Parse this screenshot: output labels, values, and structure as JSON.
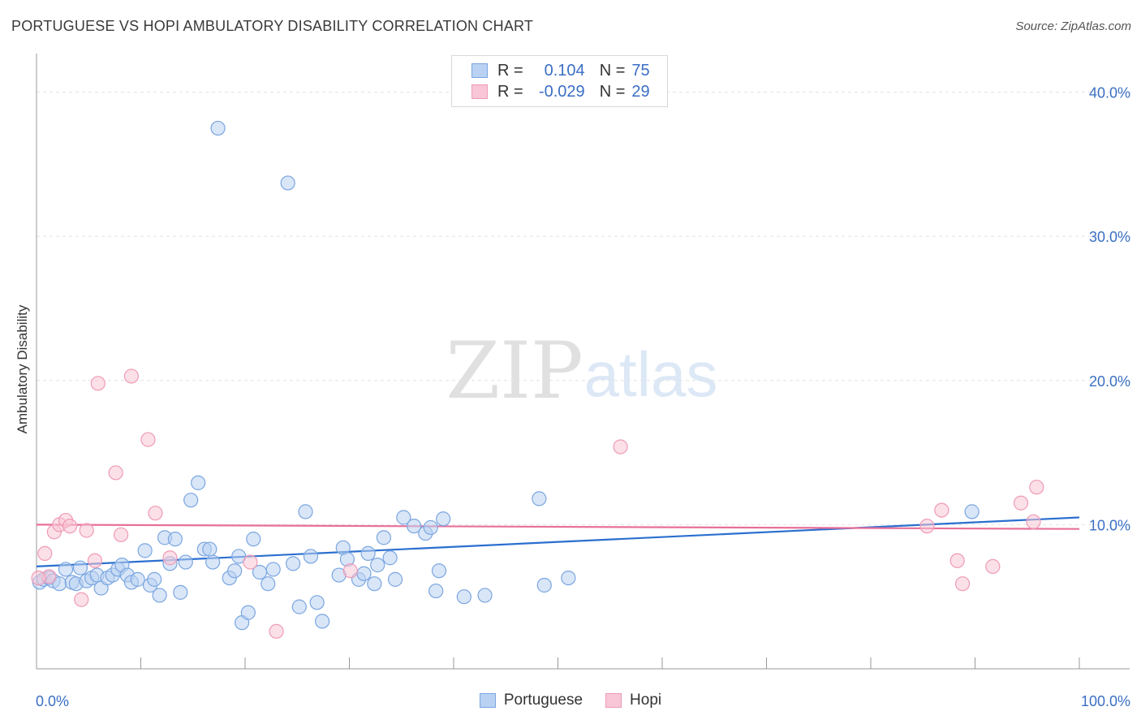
{
  "header": {
    "title": "PORTUGUESE VS HOPI AMBULATORY DISABILITY CORRELATION CHART",
    "source": "Source: ZipAtlas.com"
  },
  "watermark": {
    "zip": "ZIP",
    "atlas": "atlas"
  },
  "legend": {
    "r_label": "R =",
    "n_label": "N =",
    "series": [
      {
        "name": "Portuguese",
        "r": "0.104",
        "n": "75"
      },
      {
        "name": "Hopi",
        "r": "-0.029",
        "n": "29"
      }
    ]
  },
  "colors": {
    "portuguese_fill": "#b9d2f3",
    "portuguese_stroke": "#7aa6e0",
    "portuguese_line": "#2a6fcf",
    "hopi_fill": "#f8c6d6",
    "hopi_stroke": "#ef9ab6",
    "hopi_line": "#e8709a",
    "tick_label": "#3a6fc4"
  },
  "chart_data": {
    "type": "scatter",
    "title": "PORTUGUESE VS HOPI AMBULATORY DISABILITY CORRELATION CHART",
    "xlabel": "",
    "ylabel": "Ambulatory Disability",
    "xlim": [
      0,
      100
    ],
    "ylim": [
      0,
      42
    ],
    "x_tick_labels": [
      "0.0%",
      "100.0%"
    ],
    "y_ticks": [
      10,
      20,
      30,
      40
    ],
    "y_tick_labels": [
      "10.0%",
      "20.0%",
      "30.0%",
      "40.0%"
    ],
    "legend_position": "top-center",
    "series": [
      {
        "name": "Portuguese",
        "points": [
          [
            0.3,
            6.0
          ],
          [
            0.7,
            6.2
          ],
          [
            1.2,
            6.3
          ],
          [
            1.6,
            6.1
          ],
          [
            2.2,
            5.9
          ],
          [
            2.8,
            6.9
          ],
          [
            3.4,
            6.0
          ],
          [
            3.8,
            5.9
          ],
          [
            4.2,
            7.0
          ],
          [
            4.8,
            6.1
          ],
          [
            5.3,
            6.3
          ],
          [
            5.8,
            6.5
          ],
          [
            6.2,
            5.6
          ],
          [
            6.8,
            6.3
          ],
          [
            7.3,
            6.5
          ],
          [
            7.8,
            6.9
          ],
          [
            8.2,
            7.2
          ],
          [
            8.7,
            6.5
          ],
          [
            9.1,
            6.0
          ],
          [
            9.7,
            6.2
          ],
          [
            10.4,
            8.2
          ],
          [
            10.9,
            5.8
          ],
          [
            11.3,
            6.2
          ],
          [
            11.8,
            5.1
          ],
          [
            12.3,
            9.1
          ],
          [
            12.8,
            7.3
          ],
          [
            13.3,
            9.0
          ],
          [
            13.8,
            5.3
          ],
          [
            14.3,
            7.4
          ],
          [
            14.8,
            11.7
          ],
          [
            15.5,
            12.9
          ],
          [
            16.1,
            8.3
          ],
          [
            16.6,
            8.3
          ],
          [
            16.9,
            7.4
          ],
          [
            17.4,
            37.5
          ],
          [
            18.5,
            6.3
          ],
          [
            19.0,
            6.8
          ],
          [
            19.4,
            7.8
          ],
          [
            19.7,
            3.2
          ],
          [
            20.3,
            3.9
          ],
          [
            20.8,
            9.0
          ],
          [
            21.4,
            6.7
          ],
          [
            22.2,
            5.9
          ],
          [
            22.7,
            6.9
          ],
          [
            24.1,
            33.7
          ],
          [
            24.6,
            7.3
          ],
          [
            25.2,
            4.3
          ],
          [
            25.8,
            10.9
          ],
          [
            26.3,
            7.8
          ],
          [
            26.9,
            4.6
          ],
          [
            27.4,
            3.3
          ],
          [
            29.0,
            6.5
          ],
          [
            29.4,
            8.4
          ],
          [
            29.8,
            7.6
          ],
          [
            30.9,
            6.2
          ],
          [
            31.4,
            6.6
          ],
          [
            31.8,
            8.0
          ],
          [
            32.4,
            5.9
          ],
          [
            32.7,
            7.2
          ],
          [
            33.3,
            9.1
          ],
          [
            33.9,
            7.7
          ],
          [
            34.4,
            6.2
          ],
          [
            35.2,
            10.5
          ],
          [
            36.2,
            9.9
          ],
          [
            37.3,
            9.4
          ],
          [
            37.8,
            9.8
          ],
          [
            38.3,
            5.4
          ],
          [
            38.6,
            6.8
          ],
          [
            39.0,
            10.4
          ],
          [
            41.0,
            5.0
          ],
          [
            43.0,
            5.1
          ],
          [
            48.2,
            11.8
          ],
          [
            48.7,
            5.8
          ],
          [
            51.0,
            6.3
          ],
          [
            89.7,
            10.9
          ]
        ],
        "trend": {
          "x": [
            0,
            100
          ],
          "y": [
            7.1,
            10.5
          ]
        }
      },
      {
        "name": "Hopi",
        "points": [
          [
            0.8,
            8.0
          ],
          [
            1.2,
            6.4
          ],
          [
            1.7,
            9.5
          ],
          [
            2.2,
            10.0
          ],
          [
            2.8,
            10.3
          ],
          [
            3.2,
            9.9
          ],
          [
            4.3,
            4.8
          ],
          [
            4.8,
            9.6
          ],
          [
            5.6,
            7.5
          ],
          [
            5.9,
            19.8
          ],
          [
            7.6,
            13.6
          ],
          [
            8.1,
            9.3
          ],
          [
            9.1,
            20.3
          ],
          [
            10.7,
            15.9
          ],
          [
            11.4,
            10.8
          ],
          [
            12.8,
            7.7
          ],
          [
            20.5,
            7.4
          ],
          [
            23.0,
            2.6
          ],
          [
            30.1,
            6.8
          ],
          [
            56.0,
            15.4
          ],
          [
            85.4,
            9.9
          ],
          [
            86.8,
            11.0
          ],
          [
            88.3,
            7.5
          ],
          [
            88.8,
            5.9
          ],
          [
            91.7,
            7.1
          ],
          [
            94.4,
            11.5
          ],
          [
            95.6,
            10.2
          ],
          [
            95.9,
            12.6
          ],
          [
            0.2,
            6.3
          ]
        ],
        "trend": {
          "x": [
            0,
            100
          ],
          "y": [
            10.0,
            9.7
          ]
        }
      }
    ]
  }
}
